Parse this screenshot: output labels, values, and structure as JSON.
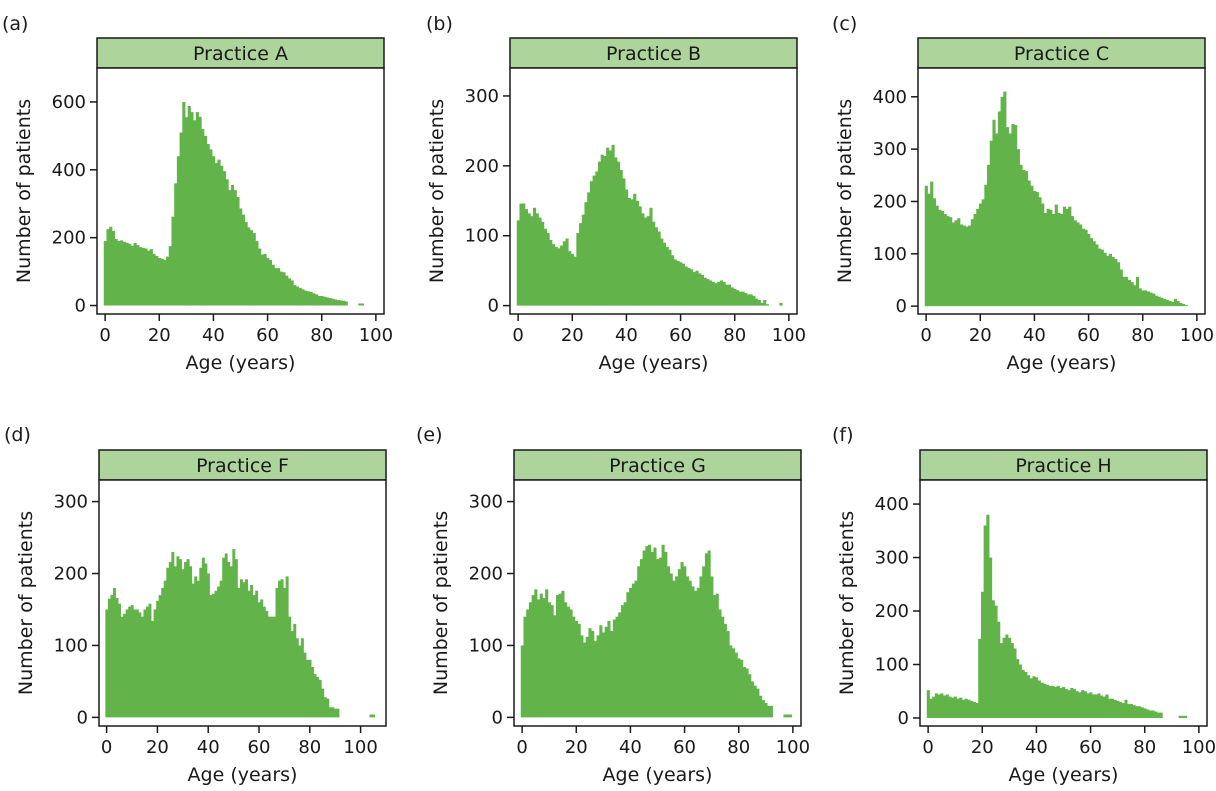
{
  "colors": {
    "bar": "#62b44a",
    "strip_fill": "#acd49b",
    "frame": "#1a1a1a"
  },
  "chart_data": [
    {
      "type": "bar",
      "panel_label": "(a)",
      "title": "Practice A",
      "xlabel": "Age (years)",
      "ylabel": "Number of patients",
      "xlim": [
        -3,
        103
      ],
      "ylim": [
        -25,
        700
      ],
      "xticks": [
        0,
        20,
        40,
        60,
        80,
        100
      ],
      "yticks": [
        0,
        200,
        400,
        600
      ],
      "x": [
        0,
        1,
        2,
        3,
        4,
        5,
        6,
        7,
        8,
        9,
        10,
        11,
        12,
        13,
        14,
        15,
        16,
        17,
        18,
        19,
        20,
        21,
        22,
        23,
        24,
        25,
        26,
        27,
        28,
        29,
        30,
        31,
        32,
        33,
        34,
        35,
        36,
        37,
        38,
        39,
        40,
        41,
        42,
        43,
        44,
        45,
        46,
        47,
        48,
        49,
        50,
        51,
        52,
        53,
        54,
        55,
        56,
        57,
        58,
        59,
        60,
        61,
        62,
        63,
        64,
        65,
        66,
        67,
        68,
        69,
        70,
        71,
        72,
        73,
        74,
        75,
        76,
        77,
        78,
        79,
        80,
        81,
        82,
        83,
        84,
        85,
        86,
        87,
        88,
        89,
        90,
        91,
        92,
        93,
        94,
        95
      ],
      "values": [
        190,
        225,
        232,
        220,
        196,
        190,
        192,
        188,
        185,
        182,
        176,
        184,
        178,
        172,
        170,
        168,
        162,
        166,
        152,
        146,
        140,
        138,
        134,
        144,
        175,
        262,
        360,
        440,
        510,
        600,
        555,
        588,
        570,
        546,
        570,
        556,
        520,
        500,
        476,
        460,
        440,
        420,
        430,
        412,
        396,
        372,
        340,
        355,
        340,
        320,
        286,
        268,
        246,
        230,
        222,
        214,
        190,
        168,
        150,
        152,
        140,
        134,
        120,
        110,
        110,
        100,
        98,
        88,
        80,
        74,
        60,
        56,
        52,
        48,
        44,
        42,
        40,
        36,
        33,
        28,
        28,
        26,
        24,
        22,
        20,
        18,
        16,
        15,
        14,
        12,
        0,
        0,
        0,
        0,
        6,
        6
      ]
    },
    {
      "type": "bar",
      "panel_label": "(b)",
      "title": "Practice B",
      "xlabel": "Age (years)",
      "ylabel": "Number of patients",
      "xlim": [
        -3,
        103
      ],
      "ylim": [
        -12,
        340
      ],
      "xticks": [
        0,
        20,
        40,
        60,
        80,
        100
      ],
      "yticks": [
        0,
        100,
        200,
        300
      ],
      "x": [
        0,
        1,
        2,
        3,
        4,
        5,
        6,
        7,
        8,
        9,
        10,
        11,
        12,
        13,
        14,
        15,
        16,
        17,
        18,
        19,
        20,
        21,
        22,
        23,
        24,
        25,
        26,
        27,
        28,
        29,
        30,
        31,
        32,
        33,
        34,
        35,
        36,
        37,
        38,
        39,
        40,
        41,
        42,
        43,
        44,
        45,
        46,
        47,
        48,
        49,
        50,
        51,
        52,
        53,
        54,
        55,
        56,
        57,
        58,
        59,
        60,
        61,
        62,
        63,
        64,
        65,
        66,
        67,
        68,
        69,
        70,
        71,
        72,
        73,
        74,
        75,
        76,
        77,
        78,
        79,
        80,
        81,
        82,
        83,
        84,
        85,
        86,
        87,
        88,
        89,
        90,
        91,
        92,
        93,
        94,
        95,
        96,
        97,
        98,
        99
      ],
      "values": [
        122,
        146,
        146,
        138,
        132,
        128,
        140,
        132,
        126,
        120,
        110,
        104,
        94,
        88,
        84,
        82,
        86,
        92,
        96,
        78,
        74,
        70,
        104,
        118,
        130,
        148,
        162,
        178,
        186,
        192,
        206,
        216,
        214,
        226,
        222,
        230,
        212,
        206,
        194,
        182,
        166,
        154,
        152,
        160,
        150,
        142,
        132,
        126,
        128,
        140,
        120,
        112,
        106,
        96,
        90,
        84,
        80,
        72,
        66,
        64,
        62,
        60,
        56,
        54,
        52,
        48,
        50,
        46,
        44,
        40,
        38,
        36,
        34,
        32,
        34,
        36,
        34,
        30,
        30,
        26,
        24,
        22,
        20,
        20,
        18,
        16,
        16,
        14,
        10,
        8,
        4,
        8,
        2,
        0,
        0,
        0,
        0,
        4,
        0,
        0
      ]
    },
    {
      "type": "bar",
      "panel_label": "(c)",
      "title": "Practice C",
      "xlabel": "Age (years)",
      "ylabel": "Number of patients",
      "xlim": [
        -3,
        103
      ],
      "ylim": [
        -15,
        455
      ],
      "xticks": [
        0,
        20,
        40,
        60,
        80,
        100
      ],
      "yticks": [
        0,
        100,
        200,
        300,
        400
      ],
      "x": [
        0,
        1,
        2,
        3,
        4,
        5,
        6,
        7,
        8,
        9,
        10,
        11,
        12,
        13,
        14,
        15,
        16,
        17,
        18,
        19,
        20,
        21,
        22,
        23,
        24,
        25,
        26,
        27,
        28,
        29,
        30,
        31,
        32,
        33,
        34,
        35,
        36,
        37,
        38,
        39,
        40,
        41,
        42,
        43,
        44,
        45,
        46,
        47,
        48,
        49,
        50,
        51,
        52,
        53,
        54,
        55,
        56,
        57,
        58,
        59,
        60,
        61,
        62,
        63,
        64,
        65,
        66,
        67,
        68,
        69,
        70,
        71,
        72,
        73,
        74,
        75,
        76,
        77,
        78,
        79,
        80,
        81,
        82,
        83,
        84,
        85,
        86,
        87,
        88,
        89,
        90,
        91,
        92,
        93,
        94,
        95,
        96
      ],
      "values": [
        230,
        215,
        238,
        206,
        192,
        184,
        182,
        176,
        172,
        170,
        160,
        164,
        168,
        156,
        154,
        152,
        154,
        166,
        176,
        186,
        196,
        204,
        232,
        270,
        316,
        356,
        330,
        372,
        400,
        410,
        342,
        330,
        348,
        346,
        300,
        270,
        260,
        258,
        240,
        230,
        220,
        218,
        208,
        196,
        178,
        186,
        184,
        176,
        194,
        178,
        176,
        190,
        186,
        190,
        172,
        164,
        160,
        156,
        148,
        146,
        138,
        130,
        124,
        118,
        110,
        108,
        102,
        96,
        100,
        94,
        90,
        84,
        70,
        56,
        56,
        50,
        46,
        40,
        56,
        34,
        30,
        30,
        28,
        26,
        24,
        20,
        18,
        16,
        14,
        12,
        10,
        8,
        14,
        10,
        6,
        4,
        2
      ]
    },
    {
      "type": "bar",
      "panel_label": "(d)",
      "title": "Practice F",
      "xlabel": "Age (years)",
      "ylabel": "Number of patients",
      "xlim": [
        -3,
        110
      ],
      "ylim": [
        -12,
        330
      ],
      "xticks": [
        0,
        20,
        40,
        60,
        80,
        100
      ],
      "yticks": [
        0,
        100,
        200,
        300
      ],
      "x": [
        0,
        1,
        2,
        3,
        4,
        5,
        6,
        7,
        8,
        9,
        10,
        11,
        12,
        13,
        14,
        15,
        16,
        17,
        18,
        19,
        20,
        21,
        22,
        23,
        24,
        25,
        26,
        27,
        28,
        29,
        30,
        31,
        32,
        33,
        34,
        35,
        36,
        37,
        38,
        39,
        40,
        41,
        42,
        43,
        44,
        45,
        46,
        47,
        48,
        49,
        50,
        51,
        52,
        53,
        54,
        55,
        56,
        57,
        58,
        59,
        60,
        61,
        62,
        63,
        64,
        65,
        66,
        67,
        68,
        69,
        70,
        71,
        72,
        73,
        74,
        75,
        76,
        77,
        78,
        79,
        80,
        81,
        82,
        83,
        84,
        85,
        86,
        87,
        88,
        89,
        90,
        91,
        92,
        93,
        94,
        95,
        96,
        97,
        98,
        99,
        100,
        101,
        102,
        103,
        104,
        105
      ],
      "values": [
        150,
        165,
        170,
        180,
        166,
        158,
        140,
        144,
        150,
        154,
        156,
        150,
        150,
        146,
        140,
        150,
        154,
        158,
        134,
        150,
        162,
        170,
        180,
        190,
        208,
        216,
        230,
        210,
        224,
        220,
        206,
        216,
        220,
        210,
        186,
        196,
        190,
        208,
        222,
        214,
        200,
        170,
        172,
        176,
        182,
        190,
        222,
        228,
        216,
        210,
        234,
        220,
        180,
        192,
        188,
        192,
        176,
        184,
        170,
        176,
        160,
        164,
        154,
        148,
        140,
        140,
        140,
        180,
        190,
        192,
        180,
        196,
        140,
        120,
        130,
        110,
        100,
        110,
        90,
        80,
        80,
        70,
        60,
        56,
        52,
        40,
        28,
        26,
        14,
        14,
        12,
        12,
        0,
        0,
        0,
        0,
        0,
        0,
        0,
        0,
        0,
        0,
        0,
        0,
        4,
        4
      ]
    },
    {
      "type": "bar",
      "panel_label": "(e)",
      "title": "Practice G",
      "xlabel": "Age (years)",
      "ylabel": "Number of patients",
      "xlim": [
        -3,
        103
      ],
      "ylim": [
        -12,
        330
      ],
      "xticks": [
        0,
        20,
        40,
        60,
        80,
        100
      ],
      "yticks": [
        0,
        100,
        200,
        300
      ],
      "x": [
        0,
        1,
        2,
        3,
        4,
        5,
        6,
        7,
        8,
        9,
        10,
        11,
        12,
        13,
        14,
        15,
        16,
        17,
        18,
        19,
        20,
        21,
        22,
        23,
        24,
        25,
        26,
        27,
        28,
        29,
        30,
        31,
        32,
        33,
        34,
        35,
        36,
        37,
        38,
        39,
        40,
        41,
        42,
        43,
        44,
        45,
        46,
        47,
        48,
        49,
        50,
        51,
        52,
        53,
        54,
        55,
        56,
        57,
        58,
        59,
        60,
        61,
        62,
        63,
        64,
        65,
        66,
        67,
        68,
        69,
        70,
        71,
        72,
        73,
        74,
        75,
        76,
        77,
        78,
        79,
        80,
        81,
        82,
        83,
        84,
        85,
        86,
        87,
        88,
        89,
        90,
        91,
        92,
        93,
        94,
        95,
        96,
        97,
        98,
        99
      ],
      "values": [
        100,
        140,
        150,
        160,
        170,
        178,
        164,
        172,
        166,
        178,
        160,
        156,
        142,
        170,
        172,
        176,
        160,
        154,
        150,
        140,
        134,
        130,
        114,
        104,
        112,
        124,
        120,
        106,
        114,
        128,
        118,
        126,
        134,
        120,
        136,
        140,
        146,
        156,
        160,
        174,
        180,
        186,
        190,
        210,
        220,
        232,
        238,
        240,
        230,
        236,
        220,
        222,
        240,
        230,
        210,
        200,
        190,
        196,
        206,
        216,
        210,
        196,
        190,
        182,
        176,
        180,
        196,
        210,
        228,
        232,
        196,
        170,
        172,
        150,
        140,
        130,
        120,
        100,
        96,
        90,
        82,
        80,
        70,
        68,
        60,
        50,
        44,
        40,
        30,
        24,
        20,
        16,
        16,
        0,
        0,
        0,
        0,
        4,
        4,
        4
      ]
    },
    {
      "type": "bar",
      "panel_label": "(f)",
      "title": "Practice H",
      "xlabel": "Age (years)",
      "ylabel": "Number of patients",
      "xlim": [
        -3,
        103
      ],
      "ylim": [
        -15,
        445
      ],
      "xticks": [
        0,
        20,
        40,
        60,
        80,
        100
      ],
      "yticks": [
        0,
        100,
        200,
        300,
        400
      ],
      "x": [
        0,
        1,
        2,
        3,
        4,
        5,
        6,
        7,
        8,
        9,
        10,
        11,
        12,
        13,
        14,
        15,
        16,
        17,
        18,
        19,
        20,
        21,
        22,
        23,
        24,
        25,
        26,
        27,
        28,
        29,
        30,
        31,
        32,
        33,
        34,
        35,
        36,
        37,
        38,
        39,
        40,
        41,
        42,
        43,
        44,
        45,
        46,
        47,
        48,
        49,
        50,
        51,
        52,
        53,
        54,
        55,
        56,
        57,
        58,
        59,
        60,
        61,
        62,
        63,
        64,
        65,
        66,
        67,
        68,
        69,
        70,
        71,
        72,
        73,
        74,
        75,
        76,
        77,
        78,
        79,
        80,
        81,
        82,
        83,
        84,
        85,
        86,
        87,
        88,
        89,
        90,
        91,
        92,
        93,
        94,
        95,
        96
      ],
      "values": [
        52,
        36,
        40,
        46,
        44,
        46,
        42,
        44,
        40,
        38,
        40,
        36,
        38,
        34,
        36,
        34,
        32,
        30,
        28,
        148,
        236,
        360,
        380,
        300,
        220,
        210,
        180,
        140,
        150,
        156,
        150,
        140,
        130,
        110,
        100,
        90,
        86,
        80,
        74,
        78,
        76,
        70,
        66,
        64,
        62,
        60,
        60,
        58,
        60,
        56,
        58,
        54,
        52,
        56,
        54,
        50,
        48,
        52,
        50,
        46,
        48,
        44,
        44,
        46,
        42,
        40,
        44,
        36,
        36,
        34,
        32,
        30,
        28,
        34,
        26,
        26,
        24,
        22,
        22,
        20,
        18,
        16,
        14,
        14,
        12,
        10,
        10,
        0,
        0,
        0,
        0,
        0,
        0,
        4,
        4,
        4,
        0
      ]
    }
  ]
}
